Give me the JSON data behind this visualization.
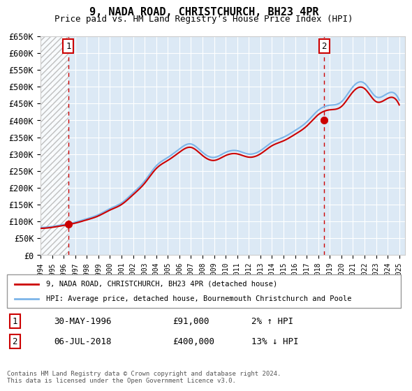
{
  "title_line1": "9, NADA ROAD, CHRISTCHURCH, BH23 4PR",
  "title_line2": "Price paid vs. HM Land Registry's House Price Index (HPI)",
  "ylabel": "",
  "background_color": "#dce9f5",
  "hatch_color": "#c0c0c0",
  "ylim": [
    0,
    650000
  ],
  "yticks": [
    0,
    50000,
    100000,
    150000,
    200000,
    250000,
    300000,
    350000,
    400000,
    450000,
    500000,
    550000,
    600000,
    650000
  ],
  "ytick_labels": [
    "£0",
    "£50K",
    "£100K",
    "£150K",
    "£200K",
    "£250K",
    "£300K",
    "£350K",
    "£400K",
    "£450K",
    "£500K",
    "£550K",
    "£600K",
    "£650K"
  ],
  "sale1_date": 1996.41,
  "sale1_price": 91000,
  "sale2_date": 2018.51,
  "sale2_price": 400000,
  "hpi_years": [
    1994,
    1995,
    1996,
    1997,
    1998,
    1999,
    2000,
    2001,
    2002,
    2003,
    2004,
    2005,
    2006,
    2007,
    2008,
    2009,
    2010,
    2011,
    2012,
    2013,
    2014,
    2015,
    2016,
    2017,
    2018,
    2019,
    2020,
    2021,
    2022,
    2023,
    2024,
    2025
  ],
  "hpi_values": [
    82000,
    85000,
    91000,
    98000,
    108000,
    120000,
    138000,
    155000,
    185000,
    220000,
    265000,
    290000,
    315000,
    330000,
    305000,
    290000,
    305000,
    310000,
    300000,
    310000,
    335000,
    350000,
    370000,
    395000,
    430000,
    445000,
    455000,
    500000,
    510000,
    470000,
    480000,
    460000
  ],
  "hpi_color": "#7cb4e8",
  "sale_color": "#cc0000",
  "dashed_line_color": "#cc0000",
  "legend_line1": "9, NADA ROAD, CHRISTCHURCH, BH23 4PR (detached house)",
  "legend_line2": "HPI: Average price, detached house, Bournemouth Christchurch and Poole",
  "ann1_label": "1",
  "ann2_label": "2",
  "ann1_date": 1996.41,
  "ann2_date": 2018.51,
  "table_row1": [
    "1",
    "30-MAY-1996",
    "£91,000",
    "2% ↑ HPI"
  ],
  "table_row2": [
    "2",
    "06-JUL-2018",
    "£400,000",
    "13% ↓ HPI"
  ],
  "footer": "Contains HM Land Registry data © Crown copyright and database right 2024.\nThis data is licensed under the Open Government Licence v3.0.",
  "xmin": 1994,
  "xmax": 2025.5
}
